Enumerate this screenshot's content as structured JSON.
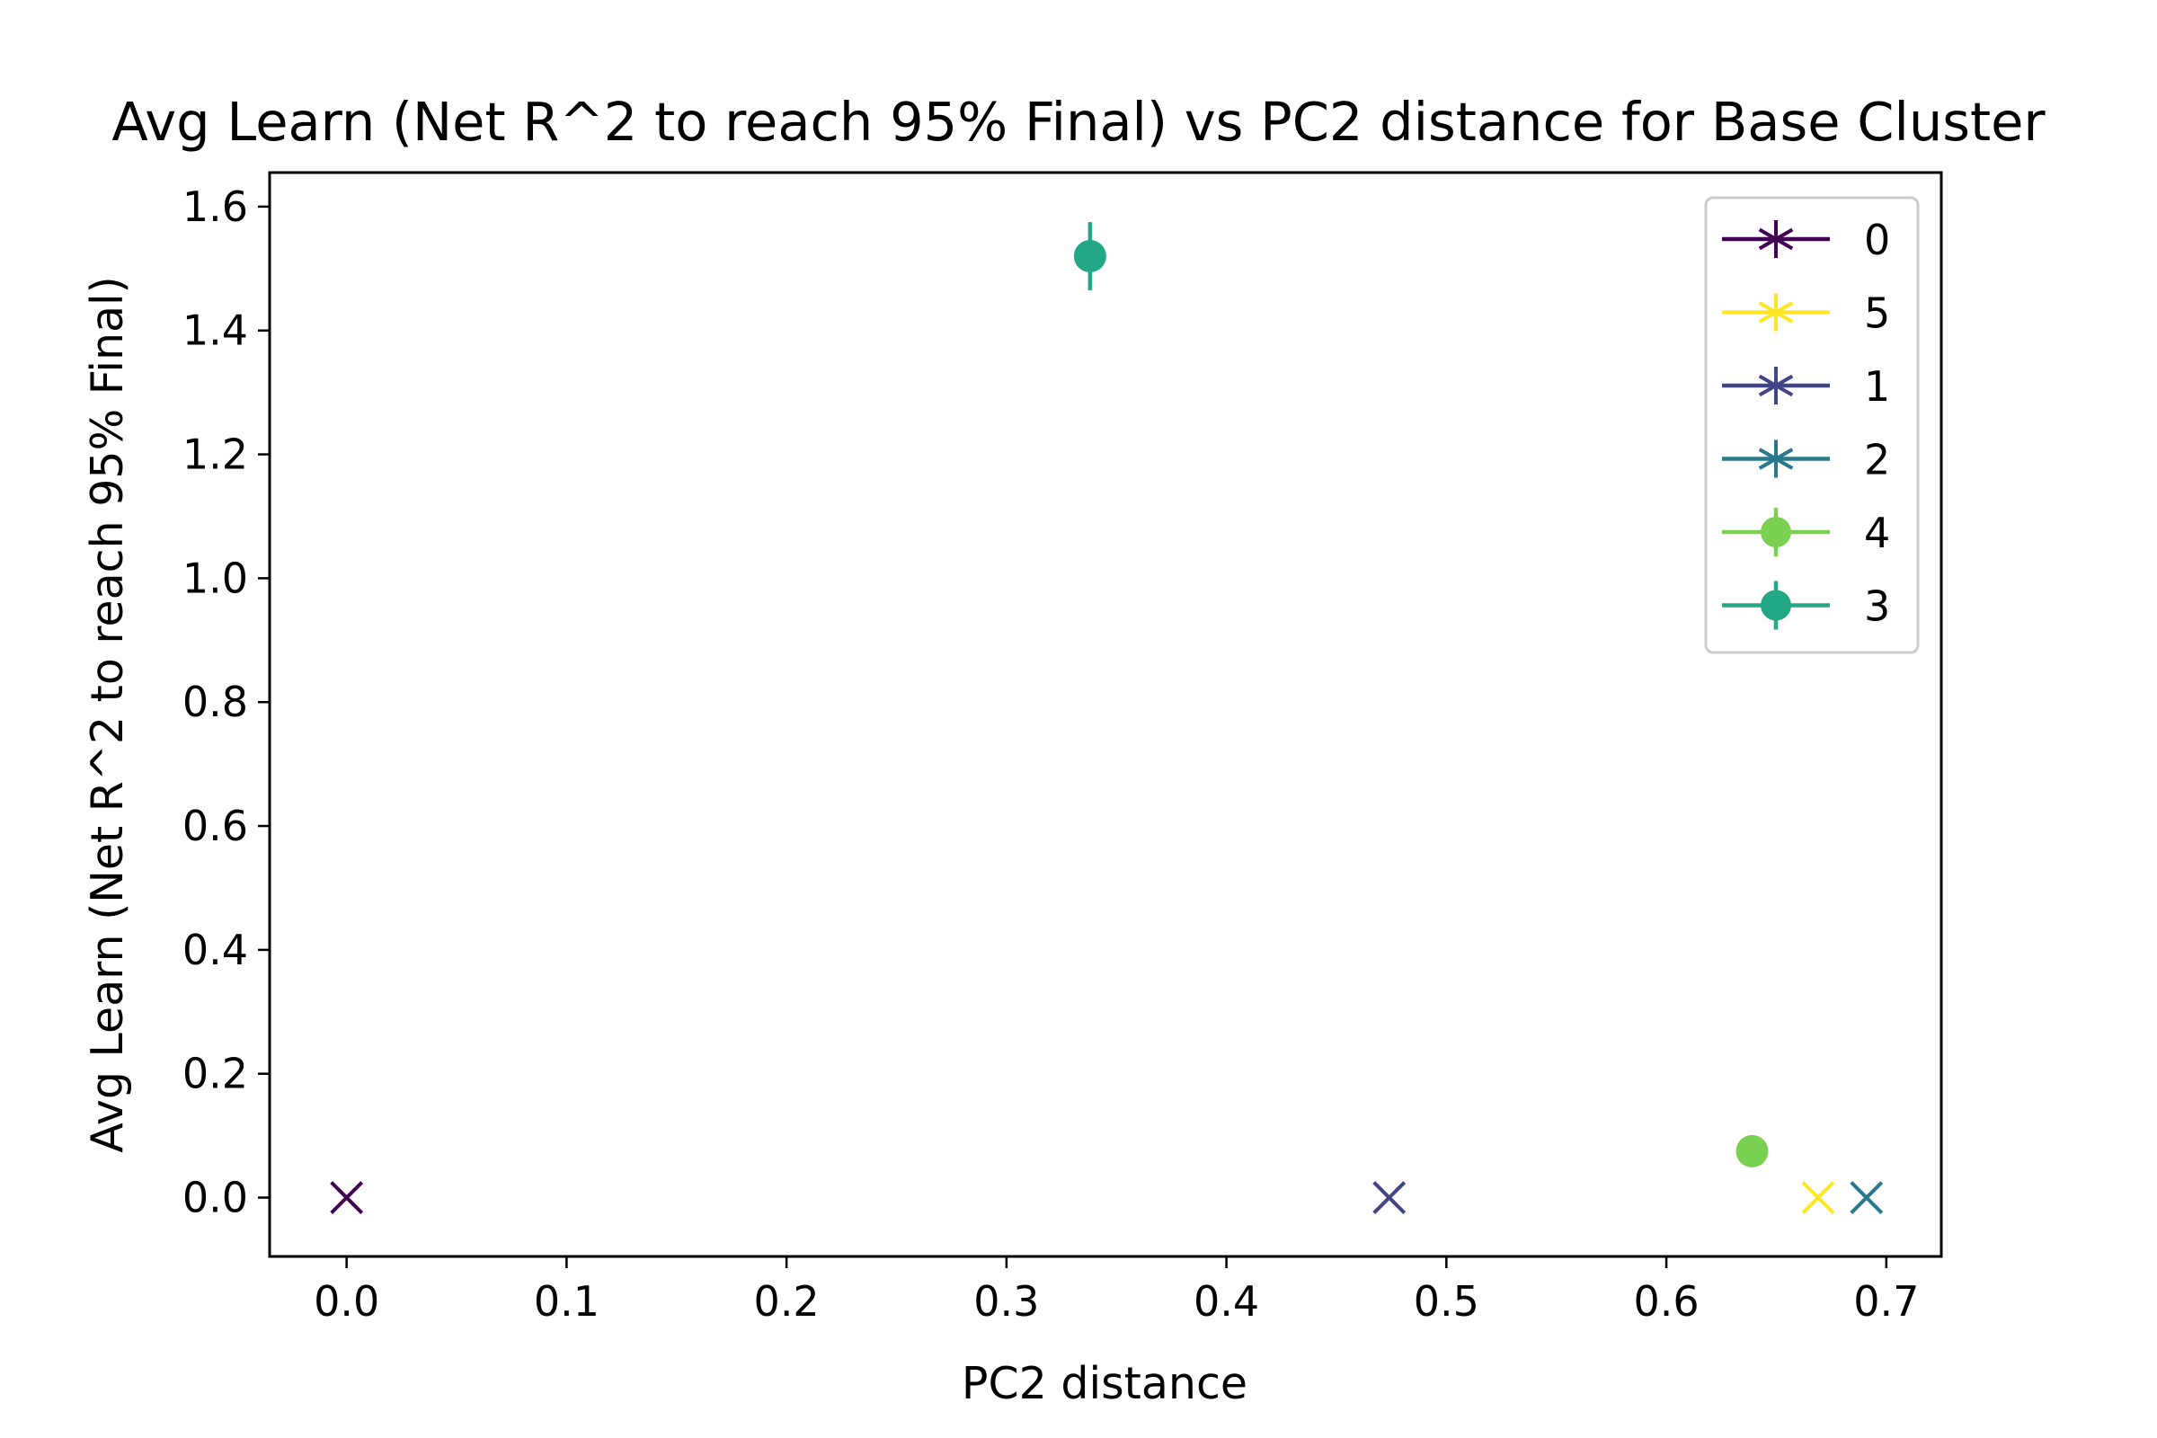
{
  "chart_data": {
    "type": "scatter",
    "title": "Avg Learn (Net R^2 to reach 95% Final) vs PC2 distance for Base Cluster",
    "xlabel": "PC2 distance",
    "ylabel": "Avg Learn (Net R^2 to reach 95% Final)",
    "xlim": [
      -0.035,
      0.725
    ],
    "ylim": [
      -0.095,
      1.655
    ],
    "xticks": [
      0.0,
      0.1,
      0.2,
      0.3,
      0.4,
      0.5,
      0.6,
      0.7
    ],
    "xtick_labels": [
      "0.0",
      "0.1",
      "0.2",
      "0.3",
      "0.4",
      "0.5",
      "0.6",
      "0.7"
    ],
    "yticks": [
      0.0,
      0.2,
      0.4,
      0.6,
      0.8,
      1.0,
      1.2,
      1.4,
      1.6
    ],
    "ytick_labels": [
      "0.0",
      "0.2",
      "0.4",
      "0.6",
      "0.8",
      "1.0",
      "1.2",
      "1.4",
      "1.6"
    ],
    "grid": false,
    "legend_position": "top-right",
    "series": [
      {
        "name": "0",
        "color": "#440154",
        "marker": "x",
        "legend_marker": "star",
        "x": 0.0,
        "y": 0.0,
        "yerr": 0.0
      },
      {
        "name": "5",
        "color": "#fde725",
        "marker": "x",
        "legend_marker": "star",
        "x": 0.669,
        "y": 0.0,
        "yerr": 0.0
      },
      {
        "name": "1",
        "color": "#414487",
        "marker": "x",
        "legend_marker": "star",
        "x": 0.474,
        "y": 0.0,
        "yerr": 0.0
      },
      {
        "name": "2",
        "color": "#2a788e",
        "marker": "x",
        "legend_marker": "star",
        "x": 0.691,
        "y": 0.0,
        "yerr": 0.0
      },
      {
        "name": "4",
        "color": "#7ad151",
        "marker": "o",
        "legend_marker": "dot",
        "x": 0.639,
        "y": 0.075,
        "yerr": 0.0
      },
      {
        "name": "3",
        "color": "#22a884",
        "marker": "o",
        "legend_marker": "dot",
        "x": 0.338,
        "y": 1.52,
        "yerr": 0.055
      }
    ]
  }
}
